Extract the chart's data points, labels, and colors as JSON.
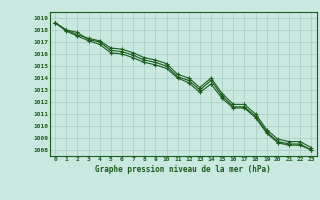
{
  "x": [
    0,
    1,
    2,
    3,
    4,
    5,
    6,
    7,
    8,
    9,
    10,
    11,
    12,
    13,
    14,
    15,
    16,
    17,
    18,
    19,
    20,
    21,
    22,
    23
  ],
  "line1": [
    1018.6,
    1018.0,
    1017.8,
    1017.2,
    1017.0,
    1016.3,
    1016.2,
    1015.9,
    1015.5,
    1015.3,
    1015.0,
    1014.1,
    1013.8,
    1013.0,
    1013.8,
    1012.5,
    1011.6,
    1011.6,
    1010.8,
    1009.5,
    1008.7,
    1008.5,
    1008.5,
    1008.0
  ],
  "line2": [
    1018.6,
    1017.9,
    1017.5,
    1017.1,
    1016.8,
    1016.1,
    1016.0,
    1015.7,
    1015.3,
    1015.1,
    1014.8,
    1014.0,
    1013.6,
    1012.8,
    1013.5,
    1012.3,
    1011.5,
    1011.5,
    1010.7,
    1009.4,
    1008.6,
    1008.4,
    1008.4,
    1008.0
  ],
  "line3": [
    1018.6,
    1018.0,
    1017.6,
    1017.3,
    1017.1,
    1016.5,
    1016.4,
    1016.1,
    1015.7,
    1015.5,
    1015.2,
    1014.3,
    1014.0,
    1013.2,
    1014.0,
    1012.7,
    1011.8,
    1011.8,
    1011.0,
    1009.7,
    1008.9,
    1008.7,
    1008.7,
    1008.2
  ],
  "bg_color": "#c8e8e0",
  "grid_color": "#a8ccc4",
  "line_color": "#1a5c1a",
  "xlabel": "Graphe pression niveau de la mer (hPa)",
  "ylim_min": 1007.5,
  "ylim_max": 1019.5,
  "xlim_min": -0.5,
  "xlim_max": 23.5,
  "yticks": [
    1008,
    1009,
    1010,
    1011,
    1012,
    1013,
    1014,
    1015,
    1016,
    1017,
    1018,
    1019
  ],
  "xticks": [
    0,
    1,
    2,
    3,
    4,
    5,
    6,
    7,
    8,
    9,
    10,
    11,
    12,
    13,
    14,
    15,
    16,
    17,
    18,
    19,
    20,
    21,
    22,
    23
  ]
}
